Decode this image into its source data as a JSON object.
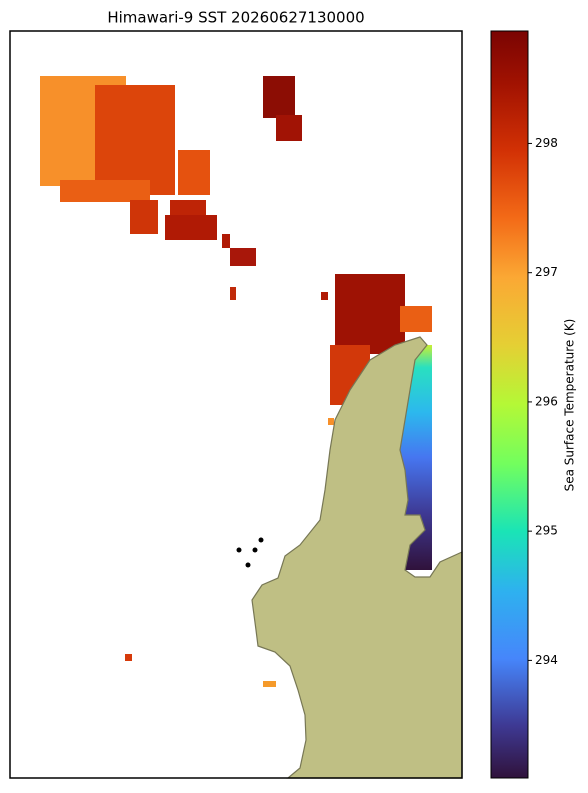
{
  "chart_data": {
    "type": "colormap",
    "title": "Himawari-9 SST 20260627130000",
    "colorbar_label": "Sea Surface Temperature (K)",
    "clim": [
      293.09,
      298.87
    ],
    "cticks": [
      294,
      295,
      296,
      297,
      298
    ]
  }
}
